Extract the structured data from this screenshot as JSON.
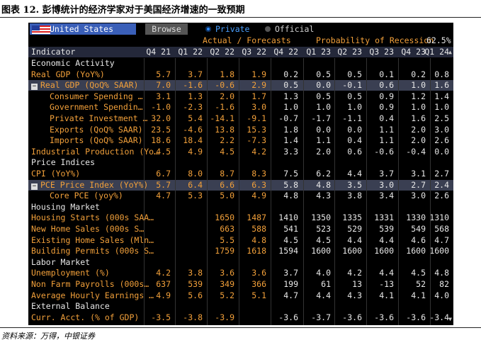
{
  "caption": "图表 12. 彭博统计的经济学家对于美国经济增速的一致预期",
  "source": "资料来源：万得，中银证券",
  "terminal": {
    "country": "United States",
    "browse_label": "Browse",
    "radio_private": "Private",
    "radio_official": "Official",
    "subheader_left": "Actual / Forecasts",
    "subheader_right": "Probability of Recession",
    "recession_prob": "62.5%",
    "indicator_header": "Indicator",
    "periods": [
      "Q4 21",
      "Q1 22",
      "Q2 22",
      "Q3 22",
      "Q4 22",
      "Q1 23",
      "Q2 23",
      "Q3 23",
      "Q4 23",
      "Q1 24"
    ],
    "rows": [
      {
        "type": "section",
        "label": "Economic Activity"
      },
      {
        "type": "data",
        "label": "Real GDP (YoY%)",
        "values": [
          "5.7",
          "3.7",
          "1.8",
          "1.9",
          "0.2",
          "0.5",
          "0.5",
          "0.1",
          "0.2",
          "0.8"
        ]
      },
      {
        "type": "data",
        "label": "Real GDP (QoQ% SAAR)",
        "expander": "−",
        "values": [
          "7.0",
          "-1.6",
          "-0.6",
          "2.9",
          "0.5",
          "0.0",
          "-0.1",
          "0.6",
          "1.0",
          "1.6"
        ]
      },
      {
        "type": "data",
        "label": "Consumer Spending …",
        "indent": true,
        "values": [
          "3.1",
          "1.3",
          "2.0",
          "1.7",
          "1.3",
          "0.5",
          "0.5",
          "0.9",
          "1.2",
          "1.4"
        ]
      },
      {
        "type": "data",
        "label": "Government Spendin…",
        "indent": true,
        "values": [
          "-1.0",
          "-2.3",
          "-1.6",
          "3.0",
          "1.0",
          "1.0",
          "1.0",
          "0.9",
          "1.0",
          "1.0"
        ]
      },
      {
        "type": "data",
        "label": "Private Investment …",
        "indent": true,
        "values": [
          "32.0",
          "5.4",
          "-14.1",
          "-9.1",
          "-0.7",
          "-1.7",
          "-1.1",
          "0.4",
          "1.6",
          "2.5"
        ]
      },
      {
        "type": "data",
        "label": "Exports (QoQ% SAAR)",
        "indent": true,
        "values": [
          "23.5",
          "-4.6",
          "13.8",
          "15.3",
          "1.8",
          "0.0",
          "0.0",
          "1.1",
          "2.0",
          "3.0"
        ]
      },
      {
        "type": "data",
        "label": "Imports (QoQ% SAAR)",
        "indent": true,
        "values": [
          "18.6",
          "18.4",
          "2.2",
          "-7.3",
          "1.4",
          "1.1",
          "0.4",
          "1.1",
          "2.0",
          "2.6"
        ]
      },
      {
        "type": "data",
        "label": "Industrial Production (Yo…",
        "values": [
          "4.5",
          "4.9",
          "4.5",
          "4.2",
          "3.3",
          "2.0",
          "0.6",
          "-0.6",
          "-0.4",
          "0.0"
        ]
      },
      {
        "type": "section",
        "label": "Price Indices"
      },
      {
        "type": "data",
        "label": "CPI (YoY%)",
        "values": [
          "6.7",
          "8.0",
          "8.7",
          "8.3",
          "7.5",
          "6.2",
          "4.4",
          "3.7",
          "3.1",
          "2.7"
        ]
      },
      {
        "type": "data",
        "label": "PCE Price Index (YoY%)",
        "expander": "−",
        "values": [
          "5.7",
          "6.4",
          "6.6",
          "6.3",
          "5.8",
          "4.8",
          "3.5",
          "3.0",
          "2.7",
          "2.4"
        ]
      },
      {
        "type": "data",
        "label": "Core PCE (yoy%)",
        "indent": true,
        "values": [
          "4.7",
          "5.3",
          "5.0",
          "4.9",
          "4.8",
          "4.3",
          "3.8",
          "3.4",
          "3.0",
          "2.6"
        ]
      },
      {
        "type": "section",
        "label": "Housing Market"
      },
      {
        "type": "data",
        "label": "Housing Starts (000s SAA…",
        "values": [
          "",
          "",
          "1650",
          "1487",
          "1410",
          "1350",
          "1335",
          "1331",
          "1330",
          "1310"
        ]
      },
      {
        "type": "data",
        "label": "New Home Sales (000s S…",
        "values": [
          "",
          "",
          "663",
          "588",
          "541",
          "523",
          "529",
          "539",
          "549",
          "568"
        ]
      },
      {
        "type": "data",
        "label": "Existing Home Sales (Mln…",
        "values": [
          "",
          "",
          "5.5",
          "4.8",
          "4.5",
          "4.5",
          "4.4",
          "4.4",
          "4.6",
          "4.7"
        ]
      },
      {
        "type": "data",
        "label": "Building Permits (000s S…",
        "values": [
          "",
          "",
          "1759",
          "1618",
          "1594",
          "1600",
          "1600",
          "1600",
          "1600",
          "1600"
        ]
      },
      {
        "type": "section",
        "label": "Labor Market"
      },
      {
        "type": "data",
        "label": "Unemployment (%)",
        "values": [
          "4.2",
          "3.8",
          "3.6",
          "3.6",
          "3.7",
          "4.0",
          "4.2",
          "4.4",
          "4.5",
          "4.8"
        ]
      },
      {
        "type": "data",
        "label": "Non Farm Payrolls (000s…",
        "values": [
          "637",
          "539",
          "349",
          "366",
          "199",
          "61",
          "13",
          "-13",
          "52",
          "82"
        ]
      },
      {
        "type": "data",
        "label": "Average Hourly Earnings …",
        "values": [
          "4.9",
          "5.6",
          "5.2",
          "5.1",
          "4.7",
          "4.4",
          "4.3",
          "4.1",
          "4.1",
          "4.0"
        ]
      },
      {
        "type": "section",
        "label": "External Balance"
      },
      {
        "type": "data",
        "label": "Curr. Acct. (% of GDP)",
        "values": [
          "-3.5",
          "-3.8",
          "-3.9",
          "",
          "-3.6",
          "-3.7",
          "-3.6",
          "-3.6",
          "-3.6",
          "-3.4"
        ]
      }
    ],
    "colors": {
      "label": "#f2a03a",
      "value": "#e8e8e8",
      "accent_blue": "#3a5fb8",
      "radio_on": "#2d8cff"
    }
  }
}
